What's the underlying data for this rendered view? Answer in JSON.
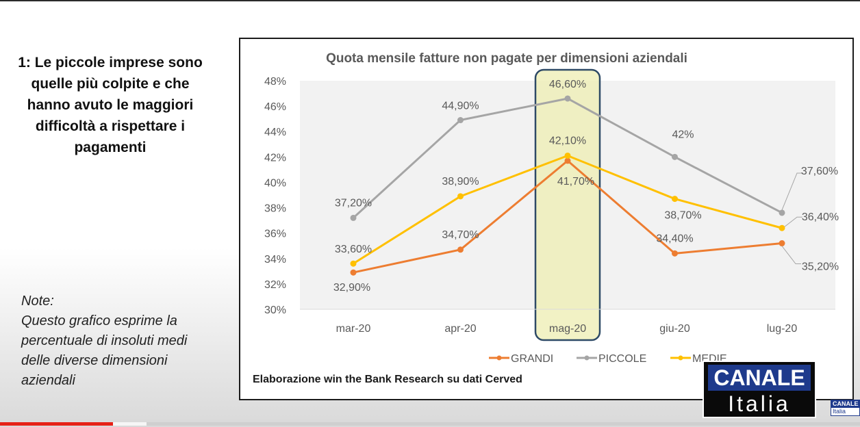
{
  "headline": "1: Le piccole imprese sono quelle più colpite e che hanno avuto le maggiori difficoltà a rispettare i pagamenti",
  "note": {
    "title": "Note:",
    "text": "Questo grafico esprime la percentuale di insoluti medi delle diverse dimensioni aziendali"
  },
  "source": "Elaborazione win the Bank Research su dati Cerved",
  "logo": {
    "top": "CANALE",
    "bottom": "Italia"
  },
  "logo_mini": {
    "top": "CANALE",
    "bottom": "Italia"
  },
  "video": {
    "played_fraction": 0.131,
    "buffered_fraction": 0.17
  },
  "colors": {
    "grandi": "#ED7D31",
    "piccole": "#A5A5A5",
    "medie": "#FFC000",
    "highlight_fill": "#EDEDB2",
    "highlight_border": "#2E4A66",
    "plot_bg": "#F2F2F2"
  },
  "chart_data": {
    "type": "line",
    "title": "Quota mensile fatture non pagate per dimensioni aziendali",
    "categories": [
      "mar-20",
      "apr-20",
      "mag-20",
      "giu-20",
      "lug-20"
    ],
    "ylim": [
      30,
      48
    ],
    "y_ticks": [
      "30%",
      "32%",
      "34%",
      "36%",
      "38%",
      "40%",
      "42%",
      "44%",
      "46%",
      "48%"
    ],
    "grid": false,
    "legend_position": "bottom",
    "highlighted_category": "mag-20",
    "series": [
      {
        "name": "GRANDI",
        "values": [
          32.9,
          34.7,
          41.7,
          34.4,
          35.2
        ],
        "labels": [
          "32,90%",
          "34,70%",
          "41,70%",
          "34,40%",
          "35,20%"
        ]
      },
      {
        "name": "PICCOLE",
        "values": [
          37.2,
          44.9,
          46.6,
          42.0,
          37.6
        ],
        "labels": [
          "37,20%",
          "44,90%",
          "46,60%",
          "42%",
          "37,60%"
        ]
      },
      {
        "name": "MEDIE",
        "values": [
          33.6,
          38.9,
          42.1,
          38.7,
          36.4
        ],
        "labels": [
          "33,60%",
          "38,90%",
          "42,10%",
          "38,70%",
          "36,40%"
        ]
      }
    ]
  }
}
